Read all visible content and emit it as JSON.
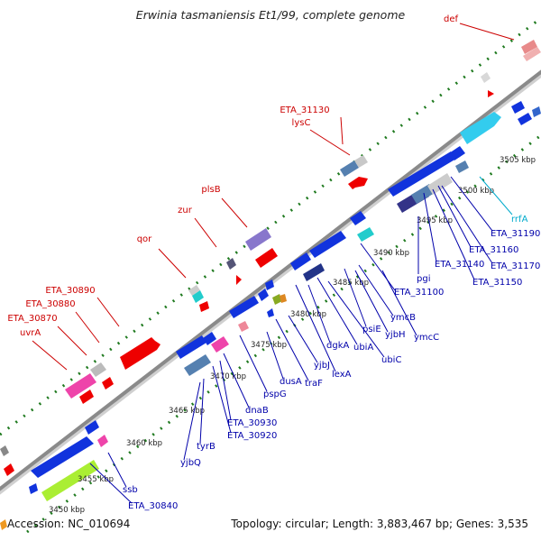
{
  "title": "Erwinia tasmaniensis Et1/99, complete genome",
  "footer": {
    "accession": "Accession: NC_010694",
    "summary": "Topology: circular; Length: 3,883,467 bp; Genes: 3,535"
  },
  "colors": {
    "backbone": "#8c8c8c",
    "tick": "#1f7a1f",
    "label_red": "#cc0000",
    "label_blue": "#0000aa",
    "label_cyan": "#00aacc"
  },
  "kbp_labels": [
    "3450 kbp",
    "3455 kbp",
    "3460 kbp",
    "3465 kbp",
    "3470 kbp",
    "3475 kbp",
    "3480 kbp",
    "3485 kbp",
    "3490 kbp",
    "3495 kbp",
    "3500 kbp",
    "3505 kbp"
  ],
  "outer_genes": [
    {
      "name": "def",
      "color": "#cc0000"
    },
    {
      "name": "ETA_31130",
      "color": "#cc0000"
    },
    {
      "name": "lysC",
      "color": "#cc0000"
    },
    {
      "name": "plsB",
      "color": "#cc0000"
    },
    {
      "name": "zur",
      "color": "#cc0000"
    },
    {
      "name": "qor",
      "color": "#cc0000"
    },
    {
      "name": "ETA_30890",
      "color": "#cc0000"
    },
    {
      "name": "ETA_30880",
      "color": "#cc0000"
    },
    {
      "name": "ETA_30870",
      "color": "#cc0000"
    },
    {
      "name": "uvrA",
      "color": "#cc0000"
    }
  ],
  "inner_genes": [
    {
      "name": "rrfA",
      "color": "#00aacc"
    },
    {
      "name": "ETA_31190",
      "color": "#0000aa"
    },
    {
      "name": "ETA_31160",
      "color": "#0000aa"
    },
    {
      "name": "ETA_31170",
      "color": "#0000aa"
    },
    {
      "name": "ETA_31140",
      "color": "#0000aa"
    },
    {
      "name": "ETA_31150",
      "color": "#0000aa"
    },
    {
      "name": "pgi",
      "color": "#0000aa"
    },
    {
      "name": "ETA_31100",
      "color": "#0000aa"
    },
    {
      "name": "ymcB",
      "color": "#0000aa"
    },
    {
      "name": "ymcC",
      "color": "#0000aa"
    },
    {
      "name": "psiE",
      "color": "#0000aa"
    },
    {
      "name": "yjbH",
      "color": "#0000aa"
    },
    {
      "name": "ubiA",
      "color": "#0000aa"
    },
    {
      "name": "ubiC",
      "color": "#0000aa"
    },
    {
      "name": "dgkA",
      "color": "#0000aa"
    },
    {
      "name": "lexA",
      "color": "#0000aa"
    },
    {
      "name": "yjbJ",
      "color": "#0000aa"
    },
    {
      "name": "traF",
      "color": "#0000aa"
    },
    {
      "name": "dusA",
      "color": "#0000aa"
    },
    {
      "name": "pspG",
      "color": "#0000aa"
    },
    {
      "name": "dnaB",
      "color": "#0000aa"
    },
    {
      "name": "ETA_30930",
      "color": "#0000aa"
    },
    {
      "name": "ETA_30920",
      "color": "#0000aa"
    },
    {
      "name": "tyrB",
      "color": "#0000aa"
    },
    {
      "name": "yjbQ",
      "color": "#0000aa"
    },
    {
      "name": "ssb",
      "color": "#0000aa"
    },
    {
      "name": "ETA_30840",
      "color": "#0000aa"
    }
  ]
}
